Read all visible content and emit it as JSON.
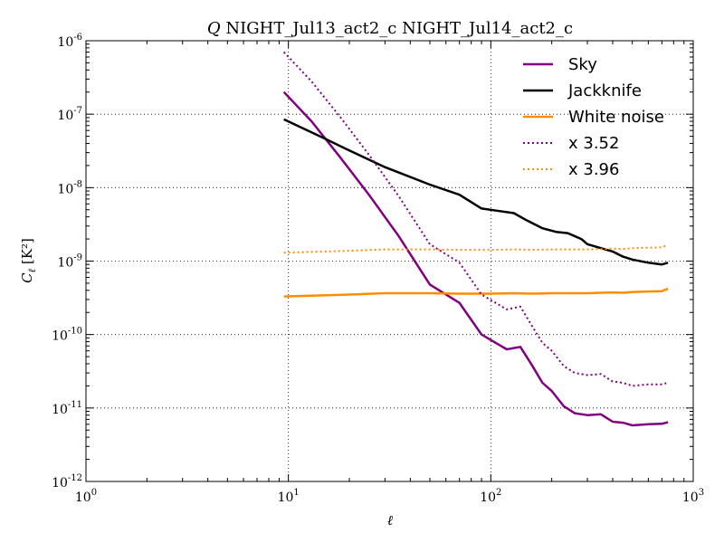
{
  "chart_data": {
    "type": "line",
    "title": "Q NIGHT_Jul13_act2_c NIGHT_Jul14_act2_c",
    "title_italic_prefix": "Q",
    "title_rest": " NIGHT_Jul13_act2_c NIGHT_Jul14_act2_c",
    "xlabel": "ℓ",
    "ylabel": "Cℓ [K²]",
    "xscale": "log",
    "yscale": "log",
    "xlim": [
      1,
      1000
    ],
    "ylim": [
      1e-12,
      1e-06
    ],
    "grid": true,
    "legend_position": "top-right",
    "x_ticks": [
      {
        "base": "10",
        "exp": "0"
      },
      {
        "base": "10",
        "exp": "1"
      },
      {
        "base": "10",
        "exp": "2"
      },
      {
        "base": "10",
        "exp": "3"
      }
    ],
    "y_ticks": [
      {
        "base": "10",
        "exp": "-12"
      },
      {
        "base": "10",
        "exp": "-11"
      },
      {
        "base": "10",
        "exp": "-10"
      },
      {
        "base": "10",
        "exp": "-9"
      },
      {
        "base": "10",
        "exp": "-8"
      },
      {
        "base": "10",
        "exp": "-7"
      },
      {
        "base": "10",
        "exp": "-6"
      }
    ],
    "series": [
      {
        "name": "Sky",
        "color": "#800080",
        "style": "solid",
        "x": [
          9.5,
          13,
          18,
          25,
          35,
          50,
          70,
          90,
          120,
          140,
          160,
          180,
          200,
          230,
          260,
          300,
          350,
          400,
          450,
          500,
          600,
          700,
          750
        ],
        "y": [
          2e-07,
          8e-08,
          2.6e-08,
          8e-09,
          2.2e-09,
          4.8e-10,
          2.7e-10,
          1e-10,
          6.3e-11,
          6.8e-11,
          3.8e-11,
          2.2e-11,
          1.7e-11,
          1.05e-11,
          8.5e-12,
          8e-12,
          8.2e-12,
          6.5e-12,
          6.3e-12,
          5.8e-12,
          6e-12,
          6.1e-12,
          6.4e-12
        ]
      },
      {
        "name": "Jackknife",
        "color": "#000000",
        "style": "solid",
        "x": [
          9.5,
          15,
          20,
          30,
          50,
          70,
          90,
          110,
          130,
          150,
          180,
          210,
          240,
          280,
          300,
          350,
          400,
          450,
          500,
          600,
          700,
          750
        ],
        "y": [
          8.5e-08,
          4.7e-08,
          3.2e-08,
          1.9e-08,
          1.1e-08,
          8e-09,
          5.2e-09,
          4.8e-09,
          4.5e-09,
          3.6e-09,
          2.8e-09,
          2.5e-09,
          2.4e-09,
          2e-09,
          1.7e-09,
          1.5e-09,
          1.35e-09,
          1.15e-09,
          1.05e-09,
          9.5e-10,
          9e-10,
          9.5e-10
        ]
      },
      {
        "name": "White noise",
        "color": "#ff8c00",
        "style": "solid",
        "x": [
          9.5,
          20,
          30,
          50,
          70,
          100,
          130,
          160,
          200,
          250,
          300,
          350,
          400,
          450,
          500,
          600,
          700,
          750
        ],
        "y": [
          3.3e-10,
          3.5e-10,
          3.65e-10,
          3.65e-10,
          3.6e-10,
          3.6e-10,
          3.65e-10,
          3.6e-10,
          3.65e-10,
          3.65e-10,
          3.65e-10,
          3.7e-10,
          3.75e-10,
          3.7e-10,
          3.8e-10,
          3.85e-10,
          3.9e-10,
          4.2e-10
        ]
      },
      {
        "name": "x 3.52",
        "color": "#800080",
        "style": "dotted",
        "x": [
          9.5,
          13,
          18,
          25,
          35,
          50,
          70,
          90,
          120,
          140,
          160,
          180,
          200,
          230,
          260,
          300,
          350,
          400,
          450,
          500,
          600,
          700,
          750
        ],
        "y": [
          7e-07,
          2.8e-07,
          9.2e-08,
          2.8e-08,
          7.7e-09,
          1.7e-09,
          9.5e-10,
          3.5e-10,
          2.2e-10,
          2.4e-10,
          1.3e-10,
          7.7e-11,
          6e-11,
          3.7e-11,
          3e-11,
          2.8e-11,
          2.9e-11,
          2.3e-11,
          2.2e-11,
          2e-11,
          2.1e-11,
          2.1e-11,
          2.2e-11
        ]
      },
      {
        "name": "x 3.96",
        "color": "#ff8c00",
        "style": "dotted",
        "x": [
          9.5,
          20,
          30,
          50,
          70,
          100,
          130,
          160,
          200,
          250,
          300,
          350,
          400,
          450,
          500,
          600,
          700,
          750
        ],
        "y": [
          1.3e-09,
          1.38e-09,
          1.44e-09,
          1.44e-09,
          1.42e-09,
          1.42e-09,
          1.44e-09,
          1.42e-09,
          1.44e-09,
          1.44e-09,
          1.44e-09,
          1.46e-09,
          1.48e-09,
          1.46e-09,
          1.5e-09,
          1.52e-09,
          1.54e-09,
          1.66e-09
        ]
      }
    ]
  }
}
